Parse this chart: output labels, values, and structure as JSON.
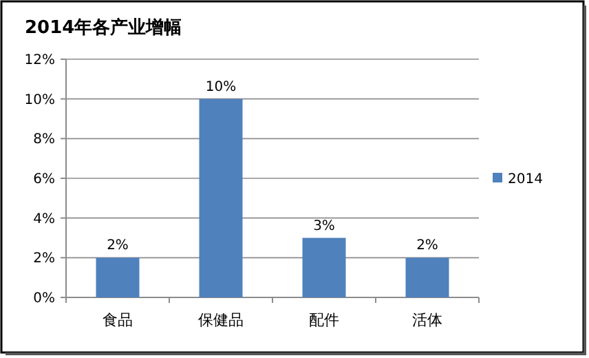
{
  "chart_data": {
    "type": "bar",
    "title": "2014年各产业增幅",
    "categories": [
      "食品",
      "保健品",
      "配件",
      "活体"
    ],
    "series": [
      {
        "name": "2014",
        "color": "#4f81bd",
        "values": [
          2,
          10,
          3,
          2
        ]
      }
    ],
    "value_labels": [
      "2%",
      "10%",
      "3%",
      "2%"
    ],
    "ylim": [
      0,
      12
    ],
    "yticks": [
      {
        "value": 0,
        "label": "0%"
      },
      {
        "value": 2,
        "label": "2%"
      },
      {
        "value": 4,
        "label": "4%"
      },
      {
        "value": 6,
        "label": "6%"
      },
      {
        "value": 8,
        "label": "8%"
      },
      {
        "value": 10,
        "label": "10%"
      },
      {
        "value": 12,
        "label": "12%"
      }
    ],
    "grid": "y",
    "legend": "right"
  }
}
